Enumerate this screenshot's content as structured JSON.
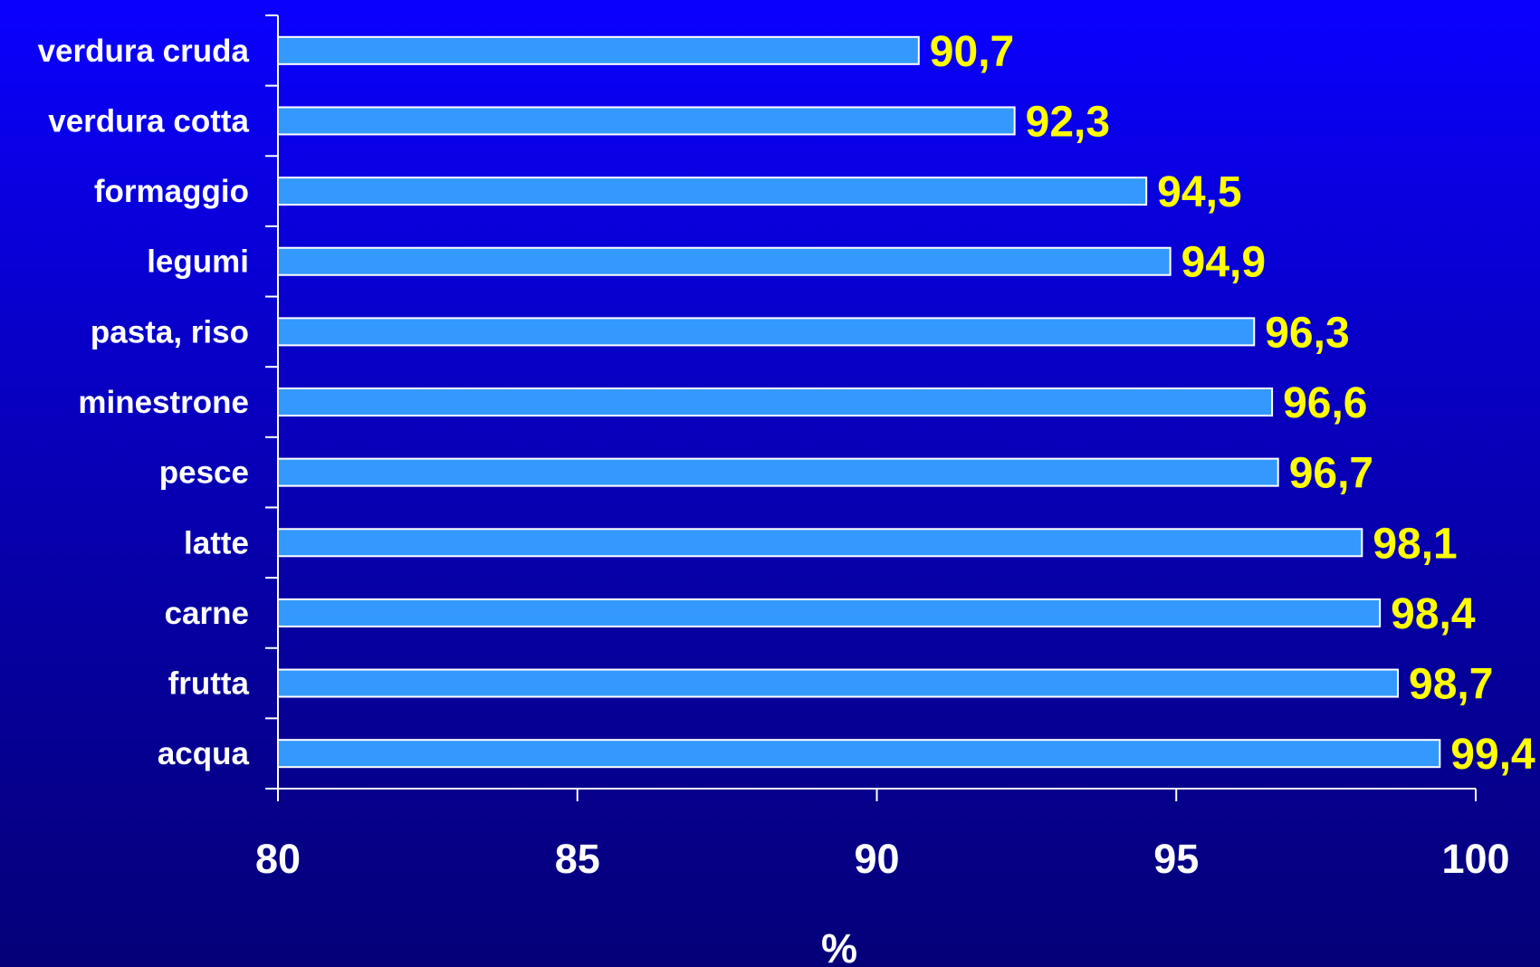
{
  "chart_data": {
    "type": "bar",
    "orientation": "horizontal",
    "categories": [
      "verdura cruda",
      "verdura cotta",
      "formaggio",
      "legumi",
      "pasta, riso",
      "minestrone",
      "pesce",
      "latte",
      "carne",
      "frutta",
      "acqua"
    ],
    "values": [
      90.7,
      92.3,
      94.5,
      94.9,
      96.3,
      96.6,
      96.7,
      98.1,
      98.4,
      98.7,
      99.4
    ],
    "value_labels": [
      "90,7",
      "92,3",
      "94,5",
      "94,9",
      "96,3",
      "96,6",
      "96,7",
      "98,1",
      "98,4",
      "98,7",
      "99,4"
    ],
    "xlim": [
      80,
      100
    ],
    "x_ticks": [
      80,
      85,
      90,
      95,
      100
    ],
    "x_tick_labels": [
      "80",
      "85",
      "90",
      "95",
      "100"
    ],
    "xlabel": "%",
    "title": "",
    "grid": false,
    "legend": "none",
    "colors": {
      "bar_fill": "#3399ff",
      "bar_stroke": "#ffffff",
      "value_label": "#ffff00",
      "axis": "#ffffff",
      "text": "#ffffff"
    }
  }
}
